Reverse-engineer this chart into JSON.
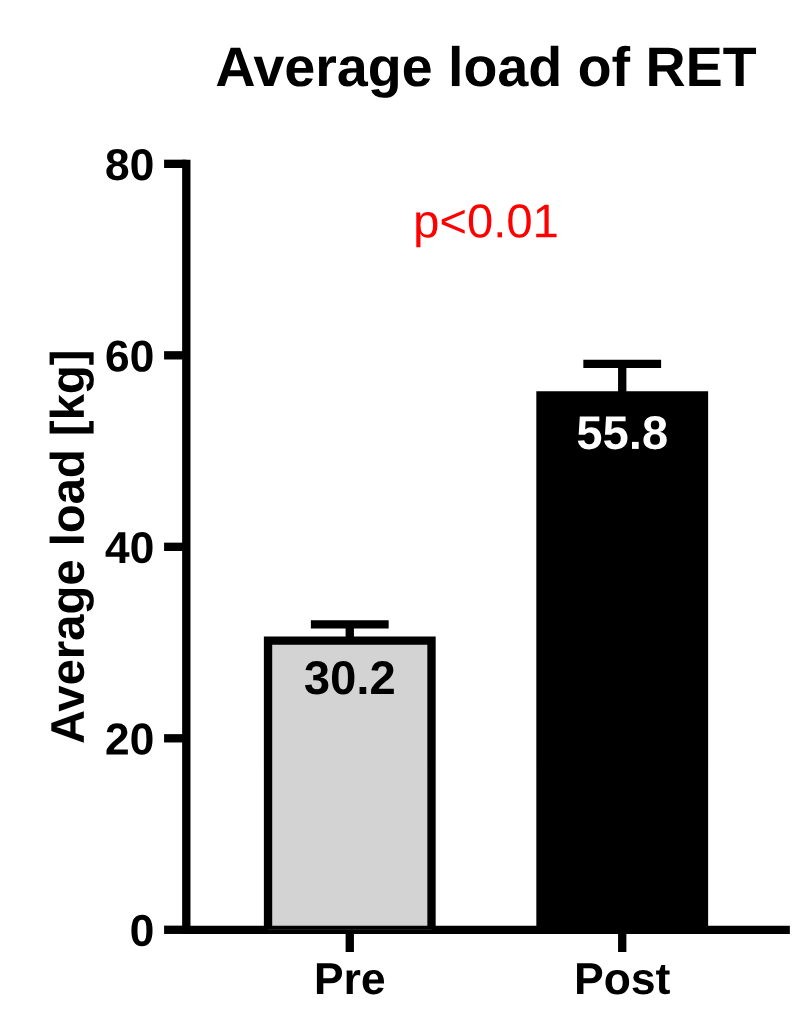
{
  "chart_data": {
    "type": "bar",
    "title": "Average load of RET",
    "ylabel": "Average load [kg]",
    "categories": [
      "Pre",
      "Post"
    ],
    "values": [
      30.2,
      55.8
    ],
    "colors": [
      "#d3d3d3",
      "#000000"
    ],
    "errors": [
      1.7,
      3.3
    ],
    "ylim": [
      0,
      80
    ],
    "yticks": [
      0,
      20,
      40,
      60,
      80
    ],
    "grid": false,
    "data_labels": true,
    "annotations": [
      "p<0.01"
    ]
  }
}
